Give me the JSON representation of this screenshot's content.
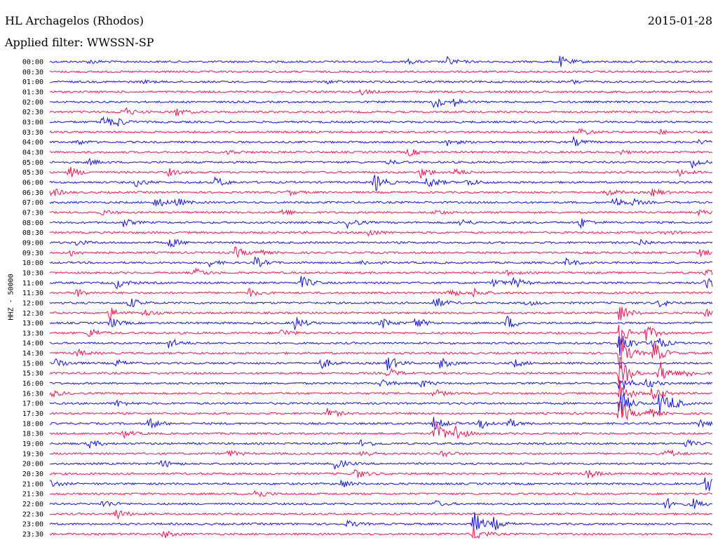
{
  "header": {
    "station": "HL Archagelos (Rhodos)",
    "date": "2015-01-28",
    "filter": "Applied filter: WWSSN-SP"
  },
  "side_label": "HHZ - 50000",
  "colors": {
    "trace_a": "#1010e0",
    "trace_b": "#f0104a"
  },
  "chart_data": {
    "type": "line",
    "title": "",
    "xlabel": "",
    "ylabel": "HHZ - 50000",
    "trace_interval_minutes": 30,
    "colors_alternate": [
      "#1010e0",
      "#f0104a"
    ],
    "rows": [
      {
        "label": "00:00",
        "events": [
          [
            0.06,
            3
          ],
          [
            0.54,
            3
          ],
          [
            0.6,
            6
          ],
          [
            0.77,
            8
          ]
        ]
      },
      {
        "label": "00:30",
        "events": []
      },
      {
        "label": "01:00",
        "events": [
          [
            0.14,
            2
          ],
          [
            0.42,
            2
          ],
          [
            0.79,
            3
          ]
        ]
      },
      {
        "label": "01:30",
        "events": [
          [
            0.47,
            4
          ]
        ]
      },
      {
        "label": "02:00",
        "events": [
          [
            0.58,
            10
          ],
          [
            0.61,
            5
          ]
        ]
      },
      {
        "label": "02:30",
        "events": [
          [
            0.11,
            8
          ],
          [
            0.19,
            6
          ]
        ]
      },
      {
        "label": "03:00",
        "events": [
          [
            0.08,
            10
          ],
          [
            0.1,
            6
          ]
        ]
      },
      {
        "label": "03:30",
        "events": [
          [
            0.8,
            6
          ],
          [
            0.92,
            3
          ]
        ]
      },
      {
        "label": "04:00",
        "events": [
          [
            0.04,
            4
          ],
          [
            0.6,
            5
          ],
          [
            0.79,
            6
          ],
          [
            0.98,
            3
          ]
        ]
      },
      {
        "label": "04:30",
        "events": [
          [
            0.27,
            4
          ],
          [
            0.54,
            6
          ],
          [
            0.86,
            3
          ]
        ]
      },
      {
        "label": "05:00",
        "events": [
          [
            0.06,
            4
          ],
          [
            0.51,
            3
          ],
          [
            0.97,
            8
          ]
        ]
      },
      {
        "label": "05:30",
        "events": [
          [
            0.03,
            8
          ],
          [
            0.18,
            5
          ],
          [
            0.56,
            8
          ],
          [
            0.61,
            6
          ],
          [
            0.95,
            5
          ]
        ]
      },
      {
        "label": "06:00",
        "events": [
          [
            0.13,
            6
          ],
          [
            0.25,
            8
          ],
          [
            0.49,
            14
          ],
          [
            0.57,
            10
          ],
          [
            0.63,
            6
          ]
        ]
      },
      {
        "label": "06:30",
        "events": [
          [
            0.0,
            8
          ],
          [
            0.36,
            4
          ],
          [
            0.84,
            6
          ],
          [
            0.91,
            6
          ]
        ]
      },
      {
        "label": "07:00",
        "events": [
          [
            0.16,
            8
          ],
          [
            0.19,
            6
          ],
          [
            0.85,
            8
          ],
          [
            0.88,
            4
          ]
        ]
      },
      {
        "label": "07:30",
        "events": [
          [
            0.08,
            4
          ],
          [
            0.35,
            5
          ],
          [
            0.58,
            4
          ],
          [
            0.98,
            4
          ]
        ]
      },
      {
        "label": "08:00",
        "events": [
          [
            0.11,
            6
          ],
          [
            0.45,
            8
          ],
          [
            0.62,
            5
          ],
          [
            0.8,
            8
          ]
        ]
      },
      {
        "label": "08:30",
        "events": [
          [
            0.48,
            6
          ],
          [
            0.93,
            3
          ]
        ]
      },
      {
        "label": "09:00",
        "events": [
          [
            0.04,
            4
          ],
          [
            0.18,
            8
          ],
          [
            0.89,
            5
          ]
        ]
      },
      {
        "label": "09:30",
        "events": [
          [
            0.03,
            5
          ],
          [
            0.28,
            8
          ],
          [
            0.31,
            5
          ],
          [
            0.98,
            6
          ]
        ]
      },
      {
        "label": "10:00",
        "events": [
          [
            0.24,
            5
          ],
          [
            0.31,
            8
          ],
          [
            0.47,
            4
          ],
          [
            0.78,
            6
          ]
        ]
      },
      {
        "label": "10:30",
        "events": [
          [
            0.22,
            6
          ],
          [
            0.69,
            3
          ],
          [
            0.99,
            6
          ]
        ]
      },
      {
        "label": "11:00",
        "events": [
          [
            0.1,
            8
          ],
          [
            0.38,
            10
          ],
          [
            0.67,
            6
          ],
          [
            0.7,
            8
          ],
          [
            0.99,
            10
          ]
        ]
      },
      {
        "label": "11:30",
        "events": [
          [
            0.04,
            6
          ],
          [
            0.3,
            6
          ],
          [
            0.6,
            8
          ],
          [
            0.64,
            6
          ]
        ]
      },
      {
        "label": "12:00",
        "events": [
          [
            0.12,
            8
          ],
          [
            0.58,
            10
          ],
          [
            0.72,
            4
          ],
          [
            0.92,
            6
          ]
        ]
      },
      {
        "label": "12:30",
        "events": [
          [
            0.09,
            8
          ],
          [
            0.14,
            6
          ],
          [
            0.86,
            14
          ],
          [
            0.99,
            6
          ]
        ]
      },
      {
        "label": "13:00",
        "events": [
          [
            0.09,
            8
          ],
          [
            0.37,
            10
          ],
          [
            0.5,
            8
          ],
          [
            0.55,
            10
          ],
          [
            0.69,
            10
          ]
        ]
      },
      {
        "label": "13:30",
        "events": [
          [
            0.06,
            8
          ],
          [
            0.35,
            6
          ],
          [
            0.86,
            18
          ],
          [
            0.9,
            12
          ]
        ]
      },
      {
        "label": "14:00",
        "events": [
          [
            0.18,
            8
          ],
          [
            0.86,
            22
          ],
          [
            0.91,
            16
          ]
        ]
      },
      {
        "label": "14:30",
        "events": [
          [
            0.04,
            6
          ],
          [
            0.86,
            26
          ],
          [
            0.91,
            20
          ]
        ]
      },
      {
        "label": "15:00",
        "events": [
          [
            0.01,
            8
          ],
          [
            0.1,
            5
          ],
          [
            0.41,
            8
          ],
          [
            0.51,
            12
          ],
          [
            0.59,
            8
          ],
          [
            0.7,
            6
          ]
        ]
      },
      {
        "label": "15:30",
        "events": [
          [
            0.51,
            8
          ],
          [
            0.86,
            28
          ],
          [
            0.92,
            18
          ],
          [
            0.96,
            6
          ]
        ]
      },
      {
        "label": "16:00",
        "events": [
          [
            0.5,
            6
          ],
          [
            0.56,
            6
          ],
          [
            0.86,
            14
          ],
          [
            0.9,
            8
          ]
        ]
      },
      {
        "label": "16:30",
        "events": [
          [
            0.0,
            6
          ],
          [
            0.58,
            6
          ],
          [
            0.86,
            18
          ],
          [
            0.91,
            12
          ]
        ]
      },
      {
        "label": "17:00",
        "events": [
          [
            0.1,
            5
          ],
          [
            0.86,
            22
          ],
          [
            0.92,
            18
          ],
          [
            0.94,
            6
          ]
        ]
      },
      {
        "label": "17:30",
        "events": [
          [
            0.42,
            8
          ],
          [
            0.86,
            20
          ],
          [
            0.9,
            10
          ]
        ]
      },
      {
        "label": "18:00",
        "events": [
          [
            0.15,
            8
          ],
          [
            0.58,
            10
          ],
          [
            0.65,
            8
          ],
          [
            0.69,
            8
          ],
          [
            0.98,
            6
          ]
        ]
      },
      {
        "label": "18:30",
        "events": [
          [
            0.11,
            6
          ],
          [
            0.58,
            22
          ],
          [
            0.61,
            14
          ]
        ]
      },
      {
        "label": "19:00",
        "events": [
          [
            0.06,
            6
          ],
          [
            0.47,
            6
          ],
          [
            0.96,
            5
          ]
        ]
      },
      {
        "label": "19:30",
        "events": [
          [
            0.27,
            5
          ],
          [
            0.47,
            6
          ],
          [
            0.59,
            6
          ],
          [
            0.93,
            8
          ]
        ]
      },
      {
        "label": "20:00",
        "events": [
          [
            0.17,
            6
          ],
          [
            0.43,
            8
          ]
        ]
      },
      {
        "label": "20:30",
        "events": [
          [
            0.46,
            8
          ],
          [
            0.81,
            8
          ]
        ]
      },
      {
        "label": "21:00",
        "events": [
          [
            0.0,
            6
          ],
          [
            0.44,
            6
          ],
          [
            0.99,
            14
          ]
        ]
      },
      {
        "label": "21:30",
        "events": [
          [
            0.31,
            8
          ]
        ]
      },
      {
        "label": "22:00",
        "events": [
          [
            0.08,
            6
          ],
          [
            0.58,
            5
          ],
          [
            0.93,
            8
          ],
          [
            0.97,
            8
          ]
        ]
      },
      {
        "label": "22:30",
        "events": [
          [
            0.1,
            8
          ]
        ]
      },
      {
        "label": "23:00",
        "events": [
          [
            0.45,
            5
          ],
          [
            0.64,
            18
          ],
          [
            0.67,
            8
          ]
        ]
      },
      {
        "label": "23:30",
        "events": [
          [
            0.17,
            6
          ],
          [
            0.64,
            12
          ]
        ]
      }
    ]
  }
}
